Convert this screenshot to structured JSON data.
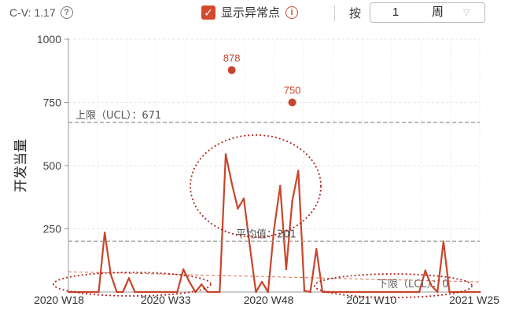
{
  "toolbar": {
    "cv_label": "C-V: 1.17",
    "help_icon": "question-circle-icon",
    "show_outliers_label": "显示异常点",
    "show_outliers_checked": true,
    "info_icon": "info-circle-icon",
    "by_label": "按",
    "period_value": "1",
    "period_unit": "周",
    "accent_color": "#d24a2d"
  },
  "chart_data": {
    "type": "line",
    "ylabel": "开发当量",
    "ylim": [
      0,
      1000
    ],
    "yticks": [
      250,
      500,
      750,
      1000
    ],
    "xtick_labels": [
      "2020 W18",
      "2020 W33",
      "2020 W48",
      "2021 W10",
      "2021 W25"
    ],
    "series": [
      {
        "color": "#c8452b",
        "values": [
          0,
          0,
          0,
          0,
          0,
          0,
          235,
          70,
          0,
          0,
          55,
          0,
          0,
          0,
          0,
          0,
          0,
          0,
          0,
          90,
          40,
          0,
          30,
          0,
          0,
          0,
          545,
          430,
          330,
          370,
          180,
          0,
          40,
          0,
          250,
          420,
          90,
          360,
          480,
          5,
          0,
          170,
          0,
          0,
          0,
          0,
          0,
          0,
          0,
          0,
          0,
          0,
          0,
          0,
          0,
          0,
          0,
          0,
          0,
          85,
          25,
          0,
          200,
          0,
          0,
          0,
          0,
          0,
          0
        ]
      }
    ],
    "outliers": [
      {
        "index": 27,
        "value": 878,
        "label": "878"
      },
      {
        "index": 37,
        "value": 750,
        "label": "750"
      }
    ],
    "ucl": {
      "value": 671,
      "label": "上限（UCL）：671"
    },
    "mean": {
      "value": 201,
      "label": "平均值：201"
    },
    "lcl": {
      "value": 0,
      "label": "下限（LCL）：0"
    },
    "trend": {
      "start": 80,
      "end": 40,
      "color": "#d24a2d"
    },
    "grid": true
  }
}
